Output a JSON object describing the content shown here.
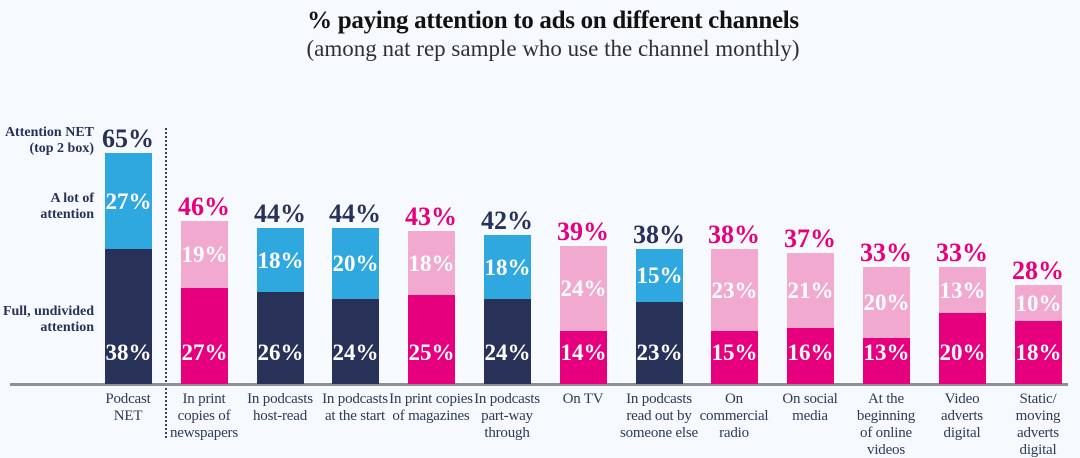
{
  "header": {
    "title": "% paying attention to ads on different channels",
    "subtitle": "(among nat rep sample who use the channel monthly)"
  },
  "row_labels": {
    "attention_net": "Attention NET\n(top 2 box)",
    "a_lot": "A lot of\nattention",
    "full": "Full, undivided\nattention"
  },
  "colors": {
    "background": "#f6f9fd",
    "navy": "#283157",
    "blue": "#2fa7df",
    "magenta": "#e6007d",
    "pink": "#f2a9cf",
    "title_text": "#121212",
    "subtitle_text": "#303030",
    "category_text": "#2e3a59",
    "axis_line": "#8e9094",
    "separator": "#3a4361",
    "value_text_on_bar": "#ffffff"
  },
  "chart_data": {
    "type": "bar",
    "stacked": true,
    "unit": "%",
    "title": "% paying attention to ads on different channels",
    "subtitle": "(among nat rep sample who use the channel monthly)",
    "ylim": [
      0,
      70
    ],
    "grid": false,
    "legend_position": "left",
    "categories": [
      "Podcast NET",
      "In print copies of newspapers",
      "In podcasts host-read",
      "In podcasts at the start",
      "In print copies of magazines",
      "In podcasts part-way through",
      "On TV",
      "In podcasts read out by someone else",
      "On commercial radio",
      "On social media",
      "At the beginning of online videos",
      "Video adverts digital",
      "Static/moving adverts digital"
    ],
    "series": [
      {
        "name": "Full, undivided attention",
        "values": [
          38,
          27,
          26,
          24,
          25,
          24,
          14,
          23,
          15,
          16,
          13,
          20,
          18
        ]
      },
      {
        "name": "A lot of attention",
        "values": [
          27,
          19,
          18,
          20,
          18,
          18,
          24,
          15,
          23,
          21,
          20,
          13,
          10
        ]
      },
      {
        "name": "Attention NET (top 2 box)",
        "values": [
          65,
          46,
          44,
          44,
          43,
          42,
          39,
          38,
          38,
          37,
          33,
          33,
          28
        ]
      }
    ],
    "bars": [
      {
        "category": "Podcast\nNET",
        "palette": "podcast",
        "total": 65,
        "a_lot": 27,
        "full": 38
      },
      {
        "category": "In print\ncopies of\nnewspapers",
        "palette": "pink",
        "total": 46,
        "a_lot": 19,
        "full": 27
      },
      {
        "category": "In podcasts\nhost-read",
        "palette": "podcast",
        "total": 44,
        "a_lot": 18,
        "full": 26
      },
      {
        "category": "In podcasts\nat the start",
        "palette": "podcast",
        "total": 44,
        "a_lot": 20,
        "full": 24
      },
      {
        "category": "In print copies\nof magazines",
        "palette": "pink",
        "total": 43,
        "a_lot": 18,
        "full": 25
      },
      {
        "category": "In podcasts\npart-way\nthrough",
        "palette": "podcast",
        "total": 42,
        "a_lot": 18,
        "full": 24
      },
      {
        "category": "On TV",
        "palette": "pink",
        "total": 39,
        "a_lot": 24,
        "full": 14
      },
      {
        "category": "In podcasts\nread out by\nsomeone else",
        "palette": "podcast",
        "total": 38,
        "a_lot": 15,
        "full": 23
      },
      {
        "category": "On\ncommercial\nradio",
        "palette": "pink",
        "total": 38,
        "a_lot": 23,
        "full": 15
      },
      {
        "category": "On social\nmedia",
        "palette": "pink",
        "total": 37,
        "a_lot": 21,
        "full": 16
      },
      {
        "category": "At the\nbeginning\nof online\nvideos",
        "palette": "pink",
        "total": 33,
        "a_lot": 20,
        "full": 13
      },
      {
        "category": "Video\nadverts\ndigital",
        "palette": "pink",
        "total": 33,
        "a_lot": 13,
        "full": 20
      },
      {
        "category": "Static/\nmoving\nadverts\ndigital",
        "palette": "pink",
        "total": 28,
        "a_lot": 10,
        "full": 18
      }
    ]
  }
}
